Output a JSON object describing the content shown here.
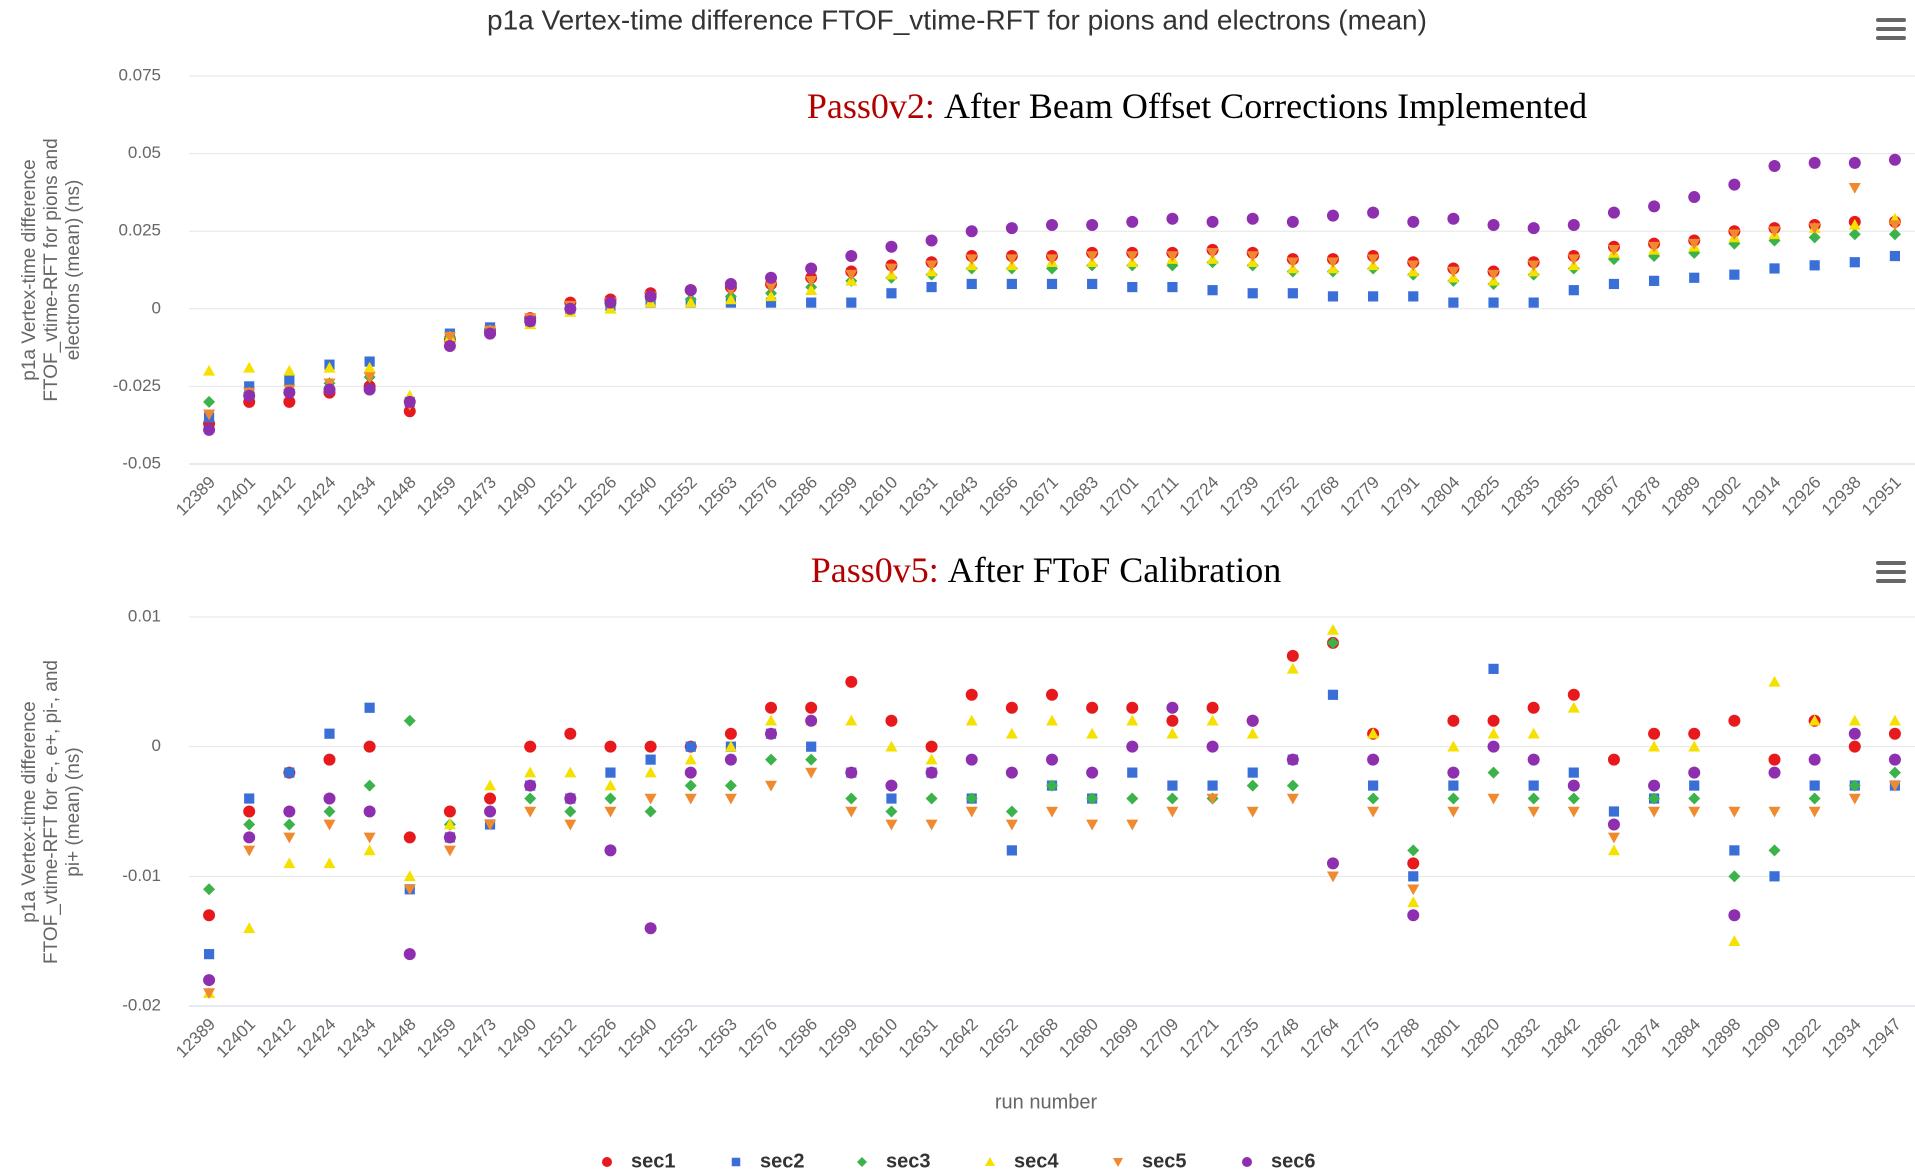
{
  "chart_data": [
    {
      "type": "scatter",
      "title": "p1a Vertex-time difference FTOF_vtime-RFT for pions and electrons (mean)",
      "annotation": {
        "label": "Pass0v2:",
        "text": "After Beam Offset Corrections Implemented"
      },
      "y_label": [
        "p1a Vertex-time difference",
        "FTOF_vtime-RFT for pions and",
        "electrons (mean) (ns)"
      ],
      "categories": [
        "12389",
        "12401",
        "12412",
        "12424",
        "12434",
        "12448",
        "12459",
        "12473",
        "12490",
        "12512",
        "12526",
        "12540",
        "12552",
        "12563",
        "12576",
        "12586",
        "12599",
        "12610",
        "12631",
        "12643",
        "12656",
        "12671",
        "12683",
        "12701",
        "12711",
        "12724",
        "12739",
        "12752",
        "12768",
        "12779",
        "12791",
        "12804",
        "12825",
        "12835",
        "12855",
        "12867",
        "12878",
        "12889",
        "12902",
        "12914",
        "12926",
        "12938",
        "12951"
      ],
      "ylim": [
        -0.05,
        0.075
      ],
      "yticks": [
        -0.05,
        -0.025,
        0,
        0.025,
        0.05,
        0.075
      ],
      "grid": true,
      "series": [
        {
          "name": "sec1",
          "color": "#e8191c",
          "marker": "circle",
          "values": [
            -0.037,
            -0.03,
            -0.03,
            -0.027,
            -0.025,
            -0.033,
            -0.01,
            -0.007,
            -0.003,
            0.002,
            0.003,
            0.005,
            0.006,
            0.007,
            0.008,
            0.01,
            0.012,
            0.014,
            0.015,
            0.017,
            0.017,
            0.017,
            0.018,
            0.018,
            0.018,
            0.019,
            0.018,
            0.016,
            0.016,
            0.017,
            0.015,
            0.013,
            0.012,
            0.015,
            0.017,
            0.02,
            0.021,
            0.022,
            0.025,
            0.026,
            0.027,
            0.028,
            0.028
          ]
        },
        {
          "name": "sec2",
          "color": "#3a6fd8",
          "marker": "square",
          "values": [
            -0.035,
            -0.025,
            -0.023,
            -0.018,
            -0.017,
            -0.03,
            -0.008,
            -0.006,
            -0.004,
            0,
            0.001,
            0.002,
            0.002,
            0.002,
            0.002,
            0.002,
            0.002,
            0.005,
            0.007,
            0.008,
            0.008,
            0.008,
            0.008,
            0.007,
            0.007,
            0.006,
            0.005,
            0.005,
            0.004,
            0.004,
            0.004,
            0.002,
            0.002,
            0.002,
            0.006,
            0.008,
            0.009,
            0.01,
            0.011,
            0.013,
            0.014,
            0.015,
            0.017
          ]
        },
        {
          "name": "sec3",
          "color": "#3cb34a",
          "marker": "diamond",
          "values": [
            -0.03,
            -0.027,
            -0.026,
            -0.024,
            -0.022,
            -0.03,
            -0.009,
            -0.007,
            -0.004,
            0,
            0.001,
            0.003,
            0.003,
            0.004,
            0.005,
            0.007,
            0.009,
            0.01,
            0.011,
            0.013,
            0.013,
            0.013,
            0.014,
            0.014,
            0.014,
            0.015,
            0.014,
            0.012,
            0.012,
            0.013,
            0.011,
            0.009,
            0.008,
            0.011,
            0.013,
            0.016,
            0.017,
            0.018,
            0.021,
            0.022,
            0.023,
            0.024,
            0.024
          ]
        },
        {
          "name": "sec4",
          "color": "#f5e000",
          "marker": "triangle",
          "values": [
            -0.02,
            -0.019,
            -0.02,
            -0.019,
            -0.019,
            -0.028,
            -0.009,
            -0.007,
            -0.005,
            -0.001,
            0,
            0.002,
            0.002,
            0.003,
            0.004,
            0.006,
            0.009,
            0.011,
            0.012,
            0.014,
            0.014,
            0.015,
            0.015,
            0.015,
            0.016,
            0.016,
            0.015,
            0.013,
            0.013,
            0.014,
            0.012,
            0.01,
            0.009,
            0.012,
            0.014,
            0.018,
            0.019,
            0.02,
            0.023,
            0.024,
            0.026,
            0.027,
            0.029
          ]
        },
        {
          "name": "sec5",
          "color": "#f08a30",
          "marker": "triangle-down",
          "values": [
            -0.034,
            -0.027,
            -0.026,
            -0.024,
            -0.022,
            -0.031,
            -0.009,
            -0.007,
            -0.003,
            0.001,
            0.002,
            0.004,
            0.005,
            0.006,
            0.007,
            0.009,
            0.011,
            0.013,
            0.014,
            0.016,
            0.016,
            0.016,
            0.017,
            0.017,
            0.017,
            0.018,
            0.017,
            0.015,
            0.015,
            0.016,
            0.014,
            0.012,
            0.011,
            0.014,
            0.016,
            0.019,
            0.02,
            0.021,
            0.024,
            0.025,
            0.026,
            0.039,
            0.027
          ]
        },
        {
          "name": "sec6",
          "color": "#8e2fb0",
          "marker": "circle",
          "values": [
            -0.039,
            -0.028,
            -0.027,
            -0.026,
            -0.026,
            -0.03,
            -0.012,
            -0.008,
            -0.004,
            0,
            0.002,
            0.004,
            0.006,
            0.008,
            0.01,
            0.013,
            0.017,
            0.02,
            0.022,
            0.025,
            0.026,
            0.027,
            0.027,
            0.028,
            0.029,
            0.028,
            0.029,
            0.028,
            0.03,
            0.031,
            0.028,
            0.029,
            0.027,
            0.026,
            0.027,
            0.031,
            0.033,
            0.036,
            0.04,
            0.046,
            0.047,
            0.047,
            0.048
          ]
        }
      ]
    },
    {
      "type": "scatter",
      "annotation": {
        "label": "Pass0v5:",
        "text": "After FToF Calibration"
      },
      "y_label": [
        "p1a Vertex-time difference",
        "FTOF_vtime-RFT for e-, e+, pi-, and",
        "pi+ (mean) (ns)"
      ],
      "x_label": "run number",
      "categories": [
        "12389",
        "12401",
        "12412",
        "12424",
        "12434",
        "12448",
        "12459",
        "12473",
        "12490",
        "12512",
        "12526",
        "12540",
        "12552",
        "12563",
        "12576",
        "12586",
        "12599",
        "12610",
        "12631",
        "12642",
        "12652",
        "12668",
        "12680",
        "12699",
        "12709",
        "12721",
        "12735",
        "12748",
        "12764",
        "12775",
        "12788",
        "12801",
        "12820",
        "12832",
        "12842",
        "12862",
        "12874",
        "12884",
        "12898",
        "12909",
        "12922",
        "12934",
        "12947"
      ],
      "ylim": [
        -0.02,
        0.01
      ],
      "yticks": [
        -0.02,
        -0.01,
        0,
        0.01
      ],
      "grid": true,
      "legend": "bottom",
      "series": [
        {
          "name": "sec1",
          "color": "#e8191c",
          "marker": "circle",
          "values": [
            -0.013,
            -0.005,
            -0.002,
            -0.001,
            0,
            -0.007,
            -0.005,
            -0.004,
            0,
            0.001,
            0,
            0,
            0,
            0.001,
            0.003,
            0.003,
            0.005,
            0.002,
            0,
            0.004,
            0.003,
            0.004,
            0.003,
            0.003,
            0.002,
            0.003,
            0.002,
            0.007,
            0.008,
            0.001,
            -0.009,
            0.002,
            0.002,
            0.003,
            0.004,
            -0.001,
            0.001,
            0.001,
            0.002,
            -0.001,
            0.002,
            0,
            0.001
          ]
        },
        {
          "name": "sec2",
          "color": "#3a6fd8",
          "marker": "square",
          "values": [
            -0.016,
            -0.004,
            -0.002,
            0.001,
            0.003,
            -0.011,
            -0.007,
            -0.006,
            -0.003,
            -0.004,
            -0.002,
            -0.001,
            0,
            0,
            0.001,
            0,
            -0.002,
            -0.004,
            -0.002,
            -0.004,
            -0.008,
            -0.003,
            -0.004,
            -0.002,
            -0.003,
            -0.003,
            -0.002,
            -0.001,
            0.004,
            -0.003,
            -0.01,
            -0.003,
            0.006,
            -0.003,
            -0.002,
            -0.005,
            -0.004,
            -0.003,
            -0.008,
            -0.01,
            -0.003,
            -0.003,
            -0.003
          ]
        },
        {
          "name": "sec3",
          "color": "#3cb34a",
          "marker": "diamond",
          "values": [
            -0.011,
            -0.006,
            -0.006,
            -0.005,
            -0.003,
            0.002,
            -0.006,
            -0.005,
            -0.004,
            -0.005,
            -0.004,
            -0.005,
            -0.003,
            -0.003,
            -0.001,
            -0.001,
            -0.004,
            -0.005,
            -0.004,
            -0.004,
            -0.005,
            -0.003,
            -0.004,
            -0.004,
            -0.004,
            -0.004,
            -0.003,
            -0.003,
            0.008,
            -0.004,
            -0.008,
            -0.004,
            -0.002,
            -0.004,
            -0.004,
            -0.006,
            -0.004,
            -0.004,
            -0.01,
            -0.008,
            -0.004,
            -0.003,
            -0.002
          ]
        },
        {
          "name": "sec4",
          "color": "#f5e000",
          "marker": "triangle",
          "values": [
            -0.019,
            -0.014,
            -0.009,
            -0.009,
            -0.008,
            -0.01,
            -0.006,
            -0.003,
            -0.002,
            -0.002,
            -0.003,
            -0.002,
            -0.001,
            0,
            0.002,
            0.002,
            0.002,
            0,
            -0.001,
            0.002,
            0.001,
            0.002,
            0.001,
            0.002,
            0.001,
            0.002,
            0.001,
            0.006,
            0.009,
            0.001,
            -0.012,
            0,
            0.001,
            0.001,
            0.003,
            -0.008,
            0,
            0,
            -0.015,
            0.005,
            0.002,
            0.002,
            0.002
          ]
        },
        {
          "name": "sec5",
          "color": "#f08a30",
          "marker": "triangle-down",
          "values": [
            -0.019,
            -0.008,
            -0.007,
            -0.006,
            -0.007,
            -0.011,
            -0.008,
            -0.006,
            -0.005,
            -0.006,
            -0.005,
            -0.004,
            -0.004,
            -0.004,
            -0.003,
            -0.002,
            -0.005,
            -0.006,
            -0.006,
            -0.005,
            -0.006,
            -0.005,
            -0.006,
            -0.006,
            -0.005,
            -0.004,
            -0.005,
            -0.004,
            -0.01,
            -0.005,
            -0.011,
            -0.005,
            -0.004,
            -0.005,
            -0.005,
            -0.007,
            -0.005,
            -0.005,
            -0.005,
            -0.005,
            -0.005,
            -0.004,
            -0.003
          ]
        },
        {
          "name": "sec6",
          "color": "#8e2fb0",
          "marker": "circle",
          "values": [
            -0.018,
            -0.007,
            -0.005,
            -0.004,
            -0.005,
            -0.016,
            -0.007,
            -0.005,
            -0.003,
            -0.004,
            -0.008,
            -0.014,
            -0.002,
            -0.001,
            0.001,
            0.002,
            -0.002,
            -0.003,
            -0.002,
            -0.001,
            -0.002,
            -0.001,
            -0.002,
            0,
            0.003,
            0,
            0.002,
            -0.001,
            -0.009,
            -0.001,
            -0.013,
            -0.002,
            0,
            -0.001,
            -0.003,
            -0.006,
            -0.003,
            -0.002,
            -0.013,
            -0.002,
            -0.001,
            0.001,
            -0.001
          ]
        }
      ]
    }
  ]
}
